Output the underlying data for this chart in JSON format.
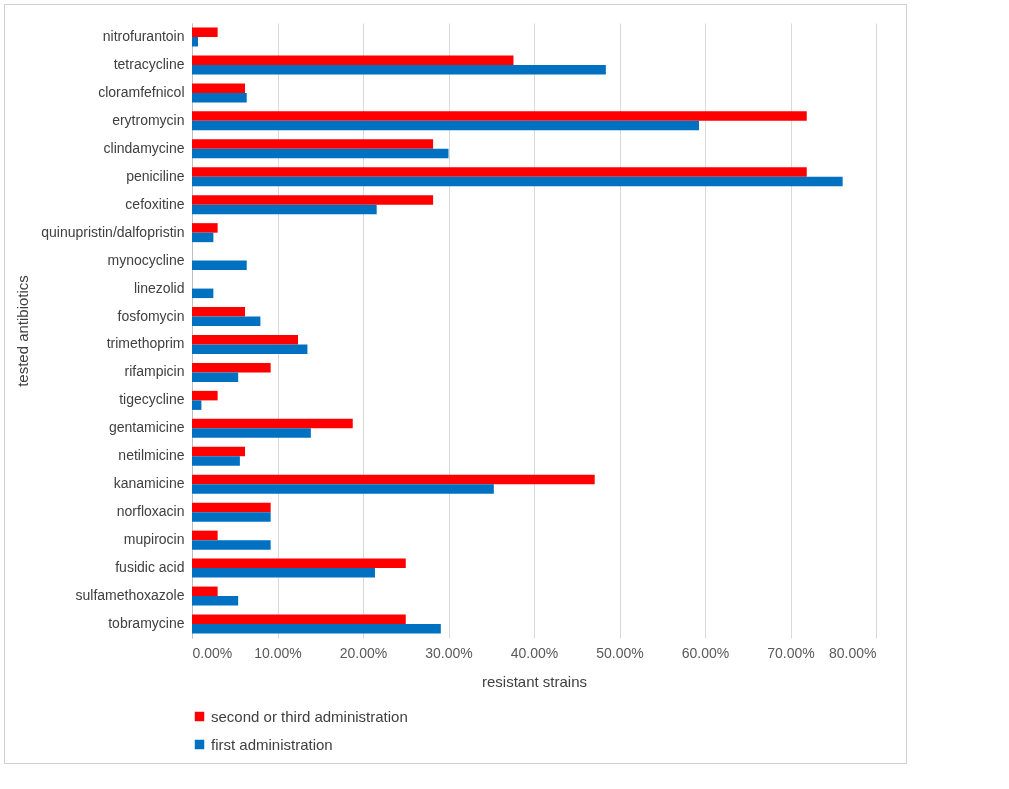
{
  "chart_data": {
    "type": "bar",
    "orientation": "horizontal",
    "xlabel": "resistant strains",
    "ylabel": "tested antibiotics",
    "categories": [
      "nitrofurantoin",
      "tetracycline",
      "cloramfefnicol",
      "erytromycin",
      "clindamycine",
      "peniciline",
      "cefoxitine",
      "quinupristin/dalfopristin",
      "mynocycline",
      "linezolid",
      "fosfomycin",
      "trimethoprim",
      "rifampicin",
      "tigecycline",
      "gentamicine",
      "netilmicine",
      "kanamicine",
      "norfloxacin",
      "mupirocin",
      "fusidic acid",
      "sulfamethoxazole",
      "tobramycine"
    ],
    "series": [
      {
        "name": "second or third administration",
        "color": "#ff0000",
        "values": [
          3.0,
          37.6,
          6.2,
          71.9,
          28.2,
          71.9,
          28.2,
          3.0,
          0,
          0,
          6.2,
          12.4,
          9.2,
          3.0,
          18.8,
          6.2,
          47.1,
          9.2,
          3.0,
          25.0,
          3.0,
          25.0
        ]
      },
      {
        "name": "first administration",
        "color": "#0070c0",
        "values": [
          0.7,
          48.4,
          6.4,
          59.3,
          30.0,
          76.1,
          21.6,
          2.5,
          6.4,
          2.5,
          8.0,
          13.5,
          5.4,
          1.1,
          13.9,
          5.6,
          35.3,
          9.2,
          9.2,
          21.4,
          5.4,
          29.1
        ]
      }
    ],
    "xlim": [
      0,
      80
    ],
    "xticks": [
      {
        "value": 0,
        "label": "0.00%"
      },
      {
        "value": 10,
        "label": "10.00%"
      },
      {
        "value": 20,
        "label": "20.00%"
      },
      {
        "value": 30,
        "label": "30.00%"
      },
      {
        "value": 40,
        "label": "40.00%"
      },
      {
        "value": 50,
        "label": "50.00%"
      },
      {
        "value": 60,
        "label": "60.00%"
      },
      {
        "value": 70,
        "label": "70.00%"
      },
      {
        "value": 80,
        "label": "80.00%"
      }
    ],
    "grid": "x",
    "legend": "bottom"
  }
}
